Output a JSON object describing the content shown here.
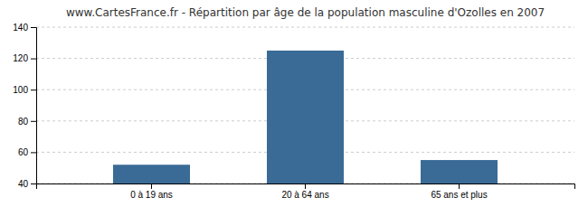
{
  "chart_data": {
    "type": "bar",
    "title": "www.CartesFrance.fr - Répartition par âge de la population masculine d'Ozolles en 2007",
    "categories": [
      "0 à 19 ans",
      "20 à 64 ans",
      "65 ans et plus"
    ],
    "values": [
      52,
      125,
      55
    ],
    "color": "#3a6b96",
    "ylim": [
      40,
      140
    ],
    "yticks": [
      40,
      60,
      80,
      100,
      120,
      140
    ],
    "grid": true
  }
}
